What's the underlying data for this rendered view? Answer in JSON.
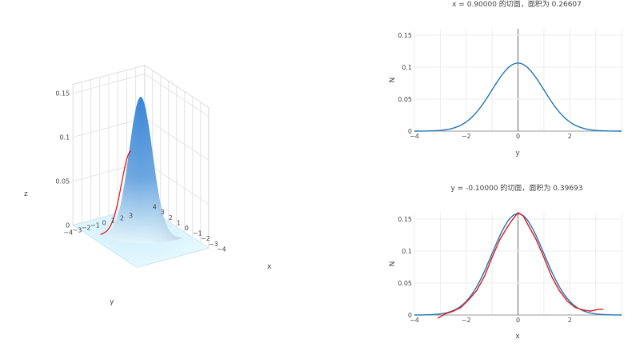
{
  "chart_data": [
    {
      "type": "surface",
      "xlabel": "x",
      "ylabel": "y",
      "zlabel": "z",
      "x_range": [
        -4,
        4
      ],
      "y_range": [
        -4,
        4
      ],
      "z_ticks": [
        0,
        0.05,
        0.1,
        0.15
      ],
      "z_tick_labels": [
        "0",
        "0.05",
        "0.1",
        "0.15"
      ],
      "x_ticks": [
        -4,
        -3,
        -2,
        -1,
        0,
        1,
        2,
        3,
        4
      ],
      "x_tick_labels": [
        "−4",
        "−3",
        "−2",
        "−1",
        "0",
        "1",
        "2",
        "3",
        "4"
      ],
      "y_ticks": [
        -4,
        -3,
        -2,
        -1,
        0,
        1,
        2,
        3
      ],
      "y_tick_labels": [
        "−4",
        "−3",
        "−2",
        "−1",
        "0",
        "1",
        "2",
        "3"
      ],
      "surface_peak": 0.159,
      "colors": {
        "high": "#3b86d6",
        "low": "#e7f9ff",
        "trace": "#e31a1c"
      }
    },
    {
      "type": "line",
      "title": "x = 0.90000 的切面，面积为 0.26607",
      "xlabel": "y",
      "ylabel": "N",
      "xlim": [
        -4,
        4
      ],
      "ylim": [
        0,
        0.16
      ],
      "x_ticks": [
        -4,
        -2,
        0,
        2
      ],
      "x_tick_labels": [
        "−4",
        "−2",
        "0",
        "2"
      ],
      "y_ticks": [
        0,
        0.05,
        0.1,
        0.15
      ],
      "y_tick_labels": [
        "0",
        "0.05",
        "0.1",
        "0.15"
      ],
      "series": [
        {
          "color": "#1f77b4",
          "peak": 0.1064,
          "sigma": 1.0,
          "x": [
            -4,
            -3.5,
            -3,
            -2.5,
            -2,
            -1.5,
            -1,
            -0.5,
            0,
            0.5,
            1,
            1.5,
            2,
            2.5,
            3,
            3.5,
            4
          ],
          "y": [
            0.0,
            0.0002,
            0.0012,
            0.0047,
            0.0144,
            0.0345,
            0.0645,
            0.0939,
            0.1064,
            0.0939,
            0.0645,
            0.0345,
            0.0144,
            0.0047,
            0.0012,
            0.0002,
            0.0
          ]
        }
      ]
    },
    {
      "type": "line",
      "title": "y = -0.10000 的切面，面积为 0.39693",
      "xlabel": "x",
      "ylabel": "N",
      "xlim": [
        -4,
        4
      ],
      "ylim": [
        0,
        0.16
      ],
      "x_ticks": [
        -4,
        -2,
        0,
        2
      ],
      "x_tick_labels": [
        "−4",
        "−2",
        "0",
        "2"
      ],
      "y_ticks": [
        0,
        0.05,
        0.1,
        0.15
      ],
      "y_tick_labels": [
        "0",
        "0.05",
        "0.1",
        "0.15"
      ],
      "series": [
        {
          "color": "#1f77b4",
          "peak": 0.1584,
          "sigma": 1.0,
          "x": [
            -4,
            -3.5,
            -3,
            -2.5,
            -2,
            -1.5,
            -1,
            -0.5,
            0,
            0.5,
            1,
            1.5,
            2,
            2.5,
            3,
            3.5,
            4
          ],
          "y": [
            0.0001,
            0.0003,
            0.0018,
            0.007,
            0.0214,
            0.0514,
            0.0961,
            0.1398,
            0.1584,
            0.1398,
            0.0961,
            0.0514,
            0.0214,
            0.007,
            0.0018,
            0.0003,
            0.0001
          ]
        },
        {
          "color": "#e31a1c",
          "x": [
            -3.1,
            -2.8,
            -2.5,
            -2.2,
            -1.9,
            -1.6,
            -1.3,
            -1.0,
            -0.7,
            -0.4,
            -0.2,
            0.0,
            0.2,
            0.4,
            0.7,
            1.0,
            1.3,
            1.6,
            1.9,
            2.2,
            2.5,
            2.8,
            3.1,
            3.3
          ],
          "y": [
            -0.005,
            0.002,
            0.006,
            0.012,
            0.024,
            0.038,
            0.06,
            0.09,
            0.118,
            0.138,
            0.15,
            0.16,
            0.155,
            0.14,
            0.118,
            0.09,
            0.06,
            0.038,
            0.022,
            0.012,
            0.008,
            0.006,
            0.009,
            0.009
          ]
        }
      ]
    }
  ]
}
